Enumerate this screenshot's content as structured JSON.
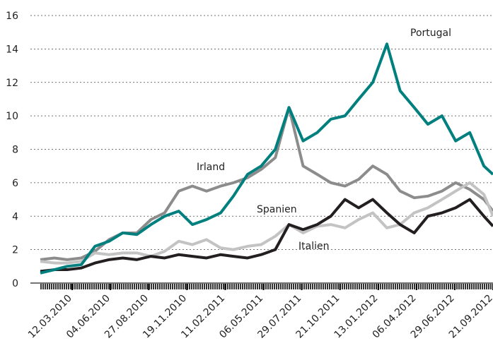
{
  "chart_data": {
    "type": "line",
    "x": [
      "01.01.2010",
      "01.02.2010",
      "01.03.2010",
      "01.04.2010",
      "01.05.2010",
      "01.06.2010",
      "01.07.2010",
      "01.08.2010",
      "01.09.2010",
      "01.10.2010",
      "01.11.2010",
      "01.12.2010",
      "01.01.2011",
      "01.02.2011",
      "01.03.2011",
      "01.04.2011",
      "01.05.2011",
      "01.06.2011",
      "01.07.2011",
      "01.08.2011",
      "01.09.2011",
      "01.10.2011",
      "01.11.2011",
      "01.12.2011",
      "01.01.2012",
      "01.02.2012",
      "01.03.2012",
      "01.04.2012",
      "01.05.2012",
      "01.06.2012",
      "01.07.2012",
      "01.08.2012",
      "01.09.2012",
      "21.09.2012"
    ],
    "series": [
      {
        "name": "Irland",
        "color": "#8c8c8c",
        "values": [
          1.4,
          1.5,
          1.4,
          1.5,
          1.9,
          2.6,
          3.0,
          3.0,
          3.8,
          4.2,
          5.5,
          5.8,
          5.5,
          5.8,
          6.0,
          6.3,
          6.8,
          7.5,
          10.5,
          7.0,
          6.5,
          6.0,
          5.8,
          6.2,
          7.0,
          6.5,
          5.5,
          5.1,
          5.2,
          5.5,
          6.0,
          5.6,
          5.0,
          4.3
        ]
      },
      {
        "name": "Spanien",
        "color": "#c3c3c3",
        "values": [
          1.3,
          1.2,
          1.2,
          1.3,
          1.8,
          1.7,
          1.8,
          1.8,
          1.6,
          1.9,
          2.5,
          2.3,
          2.6,
          2.1,
          2.0,
          2.2,
          2.3,
          2.8,
          3.5,
          3.0,
          3.4,
          3.5,
          3.3,
          3.8,
          4.2,
          3.3,
          3.5,
          4.2,
          4.5,
          5.0,
          5.5,
          6.0,
          5.3,
          4.0
        ]
      },
      {
        "name": "Italien",
        "color": "#231f20",
        "values": [
          0.7,
          0.8,
          0.8,
          0.9,
          1.2,
          1.4,
          1.5,
          1.4,
          1.6,
          1.5,
          1.7,
          1.6,
          1.5,
          1.7,
          1.6,
          1.5,
          1.7,
          2.0,
          3.5,
          3.2,
          3.5,
          4.0,
          5.0,
          4.5,
          5.0,
          4.2,
          3.5,
          3.0,
          4.0,
          4.2,
          4.5,
          5.0,
          4.0,
          3.4
        ]
      },
      {
        "name": "Portugal",
        "color": "#007f7f",
        "values": [
          0.6,
          0.8,
          1.0,
          1.1,
          2.2,
          2.5,
          3.0,
          2.9,
          3.5,
          4.0,
          4.3,
          3.5,
          3.8,
          4.2,
          5.2,
          6.5,
          7.0,
          8.0,
          10.5,
          8.5,
          9.0,
          9.8,
          10.0,
          11.0,
          12.0,
          14.3,
          11.5,
          10.5,
          9.5,
          10.0,
          8.5,
          9.0,
          7.0,
          6.5
        ]
      }
    ],
    "xlim": [
      "01.01.2010",
      "21.09.2012"
    ],
    "xticks": [
      "12.03.2010",
      "04.06.2010",
      "27.08.2010",
      "19.11.2010",
      "11.02.2011",
      "06.05.2011",
      "29.07.2011",
      "21.10.2011",
      "13.01.2012",
      "06.04.2012",
      "29.06.2012",
      "21.09.2012"
    ],
    "ylim": [
      0,
      16
    ],
    "yticks": [
      0,
      2,
      4,
      6,
      8,
      10,
      12,
      14,
      16
    ],
    "grid": true
  }
}
